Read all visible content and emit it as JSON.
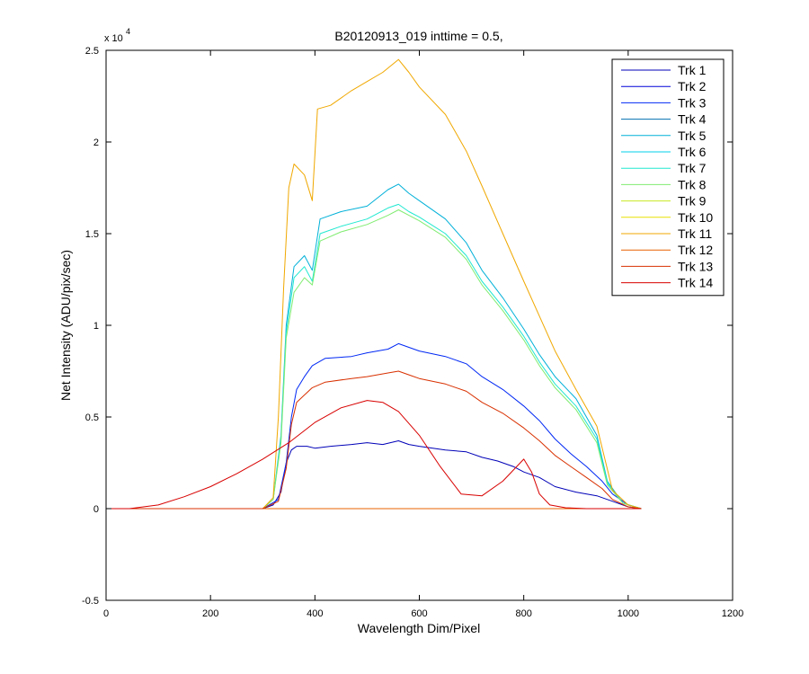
{
  "chart_data": {
    "type": "line",
    "title": "B20120913_019 inttime = 0.5,",
    "xlabel": "Wavelength Dim/Pixel",
    "ylabel": "Net Intensity (ADU/pix/sec)",
    "xlim": [
      0,
      1200
    ],
    "ylim": [
      -5000,
      25000
    ],
    "xticks": [
      0,
      200,
      400,
      600,
      800,
      1000,
      1200
    ],
    "yticks": [
      -5000,
      0,
      5000,
      10000,
      15000,
      20000,
      25000
    ],
    "ytick_labels": [
      "-0.5",
      "0",
      "0.5",
      "1",
      "1.5",
      "2",
      "2.5"
    ],
    "xtick_labels": [
      "0",
      "200",
      "400",
      "600",
      "800",
      "1000",
      "1200"
    ],
    "exponent_label": "x 10",
    "exponent_power": "4",
    "legend_position": "top-right",
    "grid": false,
    "series": [
      {
        "name": "Trk 1",
        "color": "#0000b8",
        "x": [
          0,
          45,
          300,
          320,
          335,
          345,
          355,
          365,
          385,
          400,
          430,
          470,
          500,
          530,
          560,
          580,
          600,
          650,
          690,
          720,
          750,
          780,
          800,
          830,
          860,
          900,
          940,
          970,
          1000,
          1025
        ],
        "y": [
          0,
          0,
          0,
          200,
          900,
          2500,
          3200,
          3400,
          3400,
          3300,
          3400,
          3500,
          3600,
          3500,
          3700,
          3500,
          3400,
          3200,
          3100,
          2800,
          2600,
          2300,
          2000,
          1700,
          1200,
          900,
          700,
          400,
          100,
          0
        ]
      },
      {
        "name": "Trk 2",
        "color": "#0000d8",
        "x": [
          0,
          45,
          300,
          1025
        ],
        "y": [
          0,
          0,
          0,
          0
        ]
      },
      {
        "name": "Trk 3",
        "color": "#0028f4",
        "x": [
          0,
          45,
          300,
          330,
          345,
          355,
          365,
          380,
          395,
          420,
          470,
          500,
          540,
          560,
          580,
          600,
          650,
          690,
          720,
          760,
          800,
          830,
          860,
          890,
          920,
          950,
          970,
          1000,
          1025
        ],
        "y": [
          0,
          0,
          0,
          500,
          2500,
          5000,
          6500,
          7200,
          7800,
          8200,
          8300,
          8500,
          8700,
          9000,
          8800,
          8600,
          8300,
          7900,
          7200,
          6500,
          5600,
          4800,
          3800,
          3000,
          2300,
          1500,
          800,
          200,
          0
        ]
      },
      {
        "name": "Trk 4",
        "color": "#0070b0",
        "x": [
          0,
          45,
          300,
          1025
        ],
        "y": [
          0,
          0,
          0,
          0
        ]
      },
      {
        "name": "Trk 5",
        "color": "#00b0d8",
        "x": [
          0,
          45,
          300,
          320,
          335,
          345,
          360,
          380,
          395,
          410,
          450,
          500,
          540,
          560,
          580,
          600,
          650,
          690,
          720,
          760,
          800,
          830,
          860,
          900,
          940,
          960,
          990,
          1025
        ],
        "y": [
          0,
          0,
          0,
          500,
          4000,
          10000,
          13200,
          13800,
          13000,
          15800,
          16200,
          16500,
          17400,
          17700,
          17200,
          16800,
          15800,
          14500,
          13000,
          11500,
          9800,
          8400,
          7200,
          6000,
          4000,
          1500,
          300,
          0
        ]
      },
      {
        "name": "Trk 6",
        "color": "#00d0e8",
        "x": [
          0,
          45,
          300,
          1025
        ],
        "y": [
          0,
          0,
          0,
          0
        ]
      },
      {
        "name": "Trk 7",
        "color": "#20e8d0",
        "x": [
          0,
          45,
          300,
          320,
          335,
          345,
          360,
          380,
          395,
          410,
          450,
          500,
          540,
          560,
          580,
          600,
          650,
          690,
          720,
          760,
          800,
          830,
          860,
          900,
          940,
          960,
          990,
          1025
        ],
        "y": [
          0,
          0,
          0,
          500,
          3800,
          9600,
          12600,
          13200,
          12400,
          15000,
          15400,
          15800,
          16400,
          16600,
          16200,
          15900,
          15000,
          13800,
          12400,
          11000,
          9400,
          8000,
          6800,
          5600,
          3800,
          1400,
          300,
          0
        ]
      },
      {
        "name": "Trk 8",
        "color": "#80ec70",
        "x": [
          0,
          45,
          300,
          320,
          335,
          345,
          360,
          380,
          395,
          410,
          450,
          500,
          540,
          560,
          580,
          600,
          650,
          690,
          720,
          760,
          800,
          830,
          860,
          900,
          940,
          960,
          990,
          1025
        ],
        "y": [
          0,
          0,
          0,
          500,
          3600,
          9300,
          11800,
          12600,
          12200,
          14600,
          15100,
          15500,
          16000,
          16300,
          16000,
          15700,
          14800,
          13600,
          12200,
          10800,
          9200,
          7800,
          6600,
          5400,
          3600,
          1300,
          300,
          0
        ]
      },
      {
        "name": "Trk 9",
        "color": "#c8e820",
        "x": [
          0,
          45,
          300,
          1025
        ],
        "y": [
          0,
          0,
          0,
          0
        ]
      },
      {
        "name": "Trk 10",
        "color": "#e8e000",
        "x": [
          0,
          45,
          300,
          1025
        ],
        "y": [
          0,
          0,
          0,
          0
        ]
      },
      {
        "name": "Trk 11",
        "color": "#f0a800",
        "x": [
          0,
          45,
          300,
          320,
          330,
          340,
          350,
          360,
          380,
          395,
          405,
          430,
          470,
          500,
          530,
          560,
          580,
          600,
          650,
          690,
          720,
          760,
          800,
          830,
          860,
          900,
          940,
          970,
          1000,
          1025
        ],
        "y": [
          0,
          0,
          0,
          600,
          5000,
          12000,
          17500,
          18800,
          18200,
          16800,
          21800,
          22000,
          22800,
          23300,
          23800,
          24500,
          23800,
          23000,
          21500,
          19500,
          17600,
          15000,
          12400,
          10500,
          8600,
          6500,
          4500,
          1000,
          200,
          0
        ]
      },
      {
        "name": "Trk 12",
        "color": "#e86000",
        "x": [
          0,
          45,
          300,
          1025
        ],
        "y": [
          0,
          0,
          0,
          0
        ]
      },
      {
        "name": "Trk 13",
        "color": "#d83000",
        "x": [
          0,
          45,
          300,
          330,
          345,
          355,
          365,
          380,
          395,
          420,
          470,
          500,
          540,
          560,
          580,
          600,
          650,
          690,
          720,
          760,
          800,
          830,
          860,
          890,
          920,
          950,
          970,
          1000,
          1025
        ],
        "y": [
          0,
          0,
          0,
          400,
          2200,
          4600,
          5800,
          6200,
          6600,
          6900,
          7100,
          7200,
          7400,
          7500,
          7300,
          7100,
          6800,
          6400,
          5800,
          5200,
          4400,
          3700,
          2900,
          2300,
          1700,
          1100,
          500,
          100,
          0
        ]
      },
      {
        "name": "Trk 14",
        "color": "#d80000",
        "x": [
          0,
          45,
          100,
          150,
          200,
          250,
          300,
          350,
          400,
          450,
          500,
          530,
          560,
          600,
          640,
          680,
          720,
          760,
          790,
          800,
          815,
          830,
          850,
          880,
          920,
          960,
          1000,
          1025
        ],
        "y": [
          0,
          0,
          200,
          650,
          1200,
          1900,
          2700,
          3600,
          4700,
          5500,
          5900,
          5800,
          5300,
          4000,
          2300,
          800,
          700,
          1500,
          2400,
          2700,
          2000,
          800,
          200,
          50,
          0,
          0,
          0,
          0
        ]
      }
    ]
  }
}
